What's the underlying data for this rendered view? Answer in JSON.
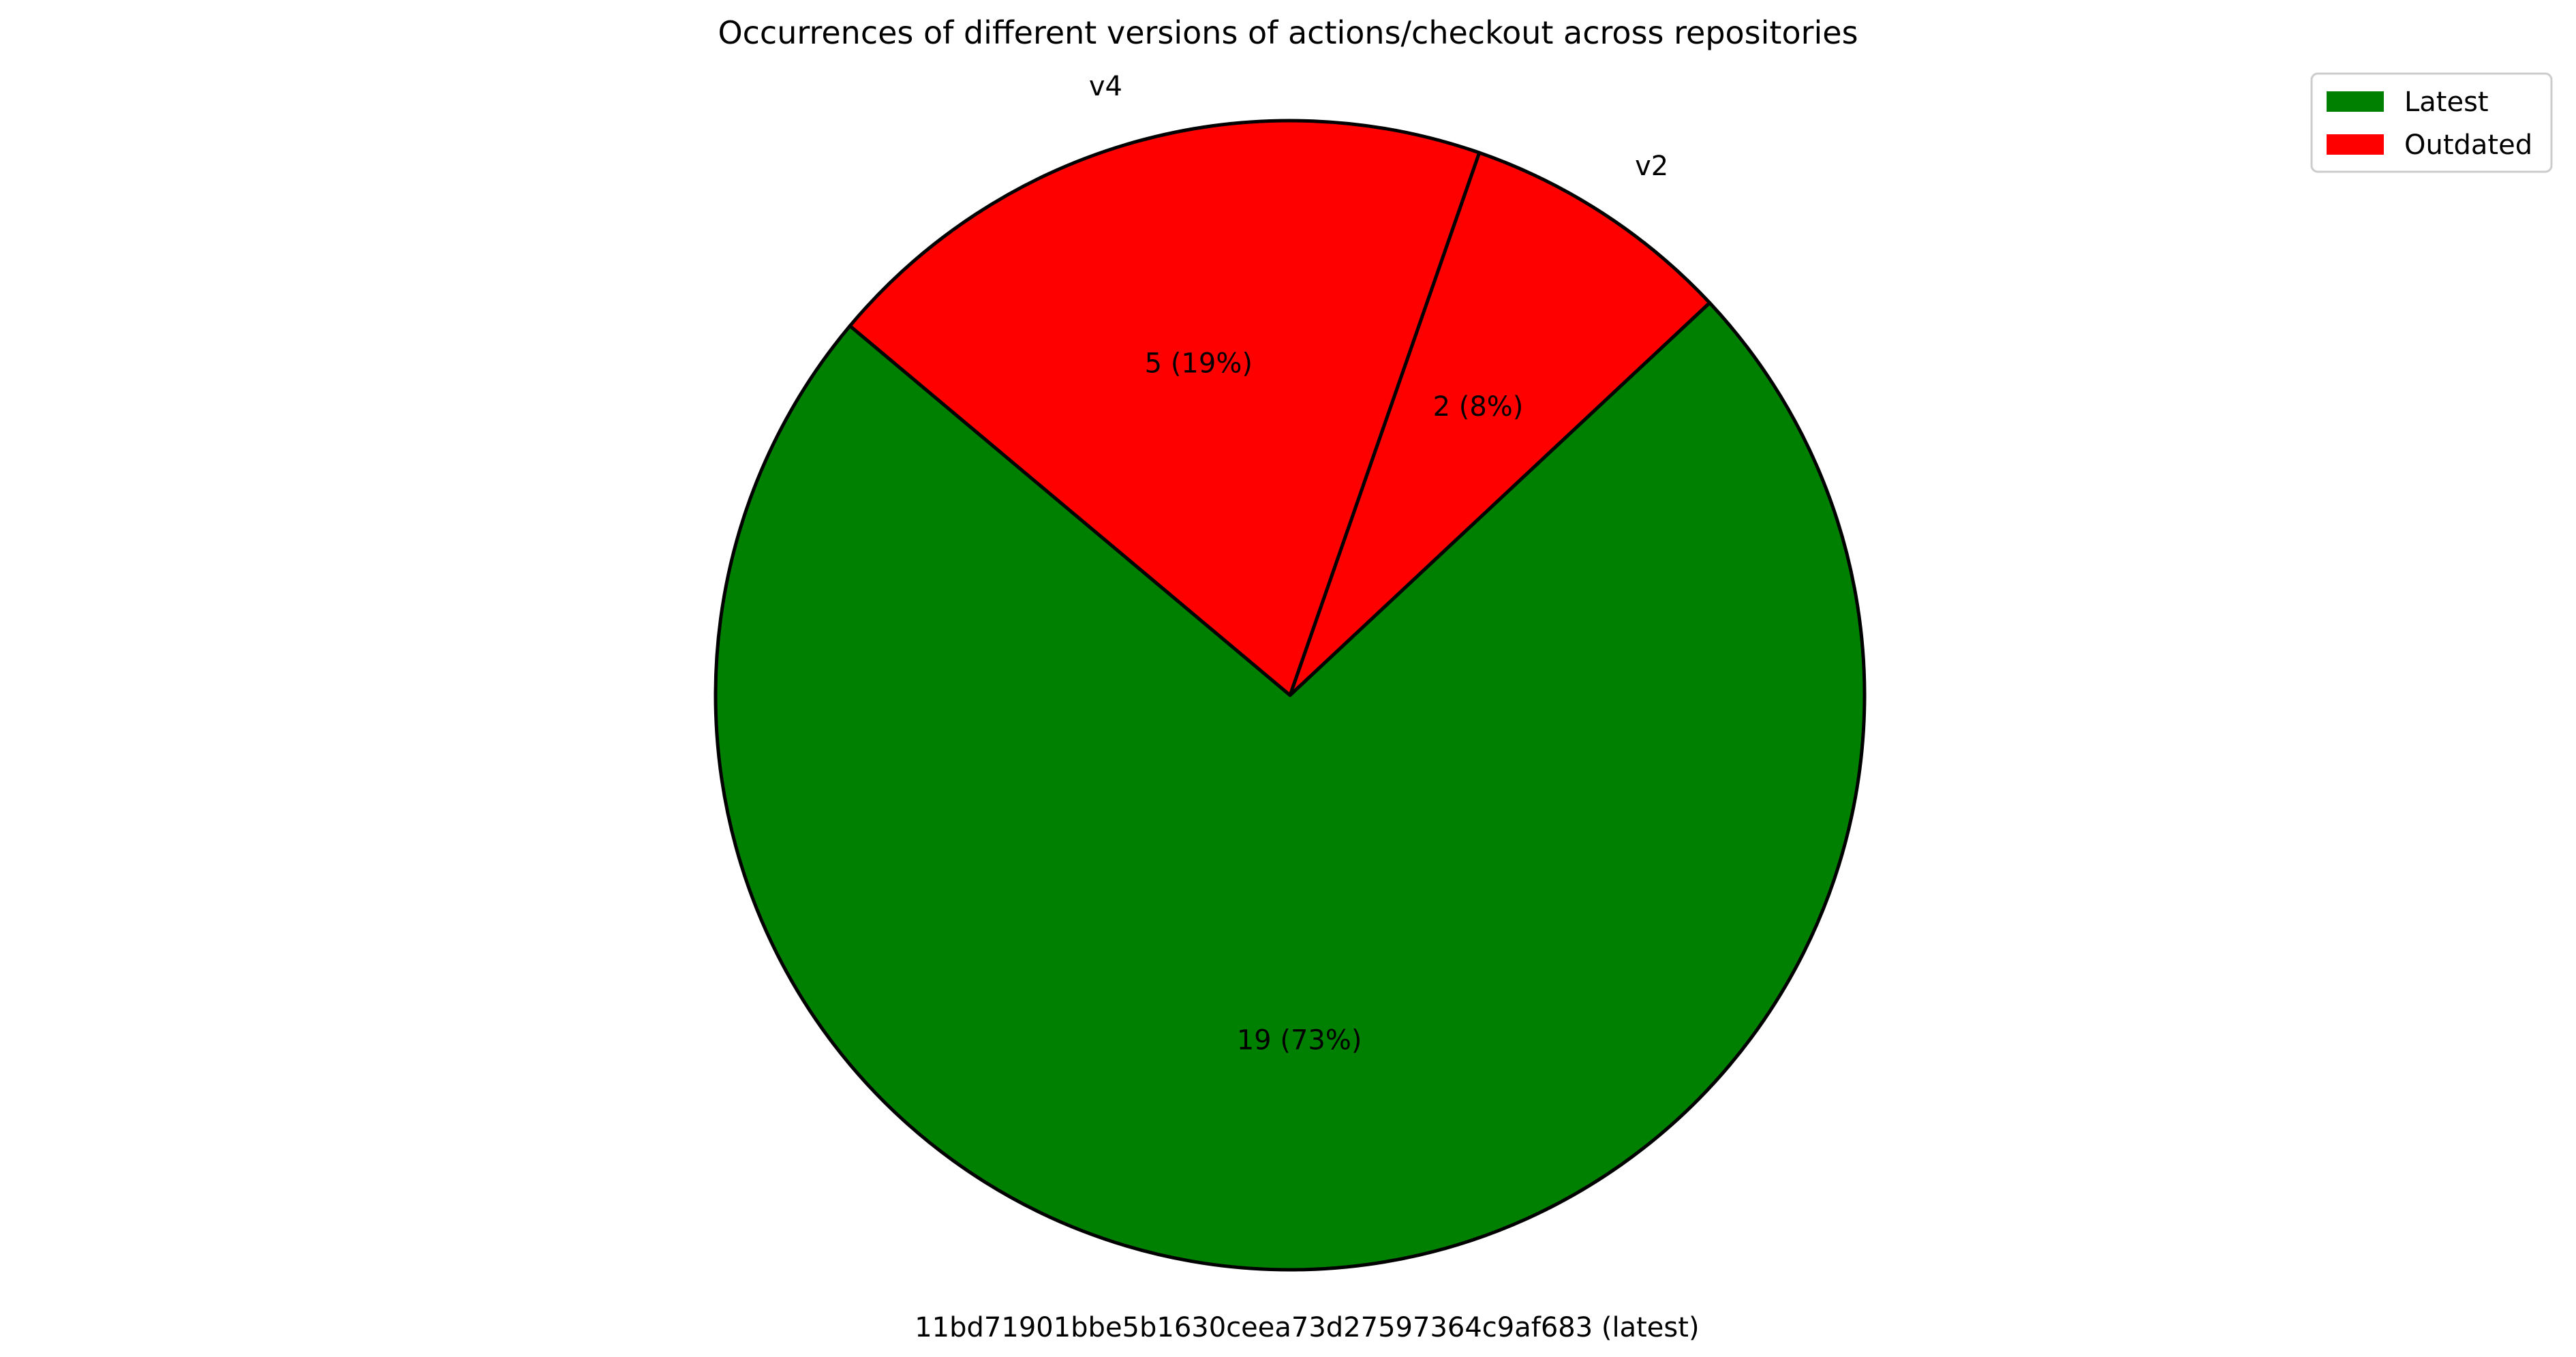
{
  "chart_data": {
    "type": "pie",
    "title": "Occurrences of different versions of actions/checkout across repositories",
    "start_angle_deg": 140,
    "direction": "counterclockwise",
    "slices": [
      {
        "label": "11bd71901bbe5b1630ceea73d27597364c9af683 (latest)",
        "value": 19,
        "percent_label": "19 (73%)",
        "color": "#008000",
        "status": "Latest"
      },
      {
        "label": "v2",
        "value": 2,
        "percent_label": "2 (8%)",
        "color": "#ff0000",
        "status": "Outdated"
      },
      {
        "label": "v4",
        "value": 5,
        "percent_label": "5 (19%)",
        "color": "#ff0000",
        "status": "Outdated"
      }
    ],
    "legend": {
      "position": "upper-right",
      "entries": [
        {
          "label": "Latest",
          "color": "#008000"
        },
        {
          "label": "Outdated",
          "color": "#ff0000"
        }
      ]
    },
    "edge_color": "#000000"
  }
}
